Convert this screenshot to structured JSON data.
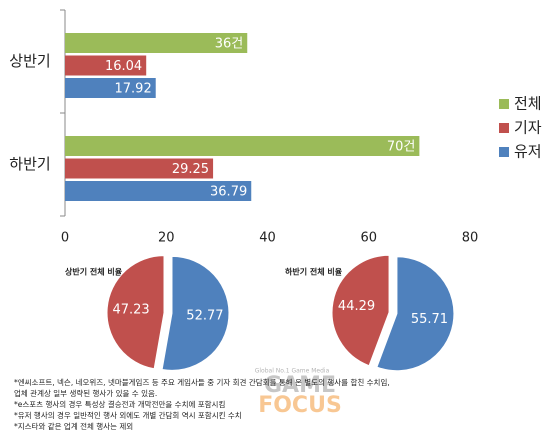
{
  "chart_data": [
    {
      "type": "bar",
      "orientation": "horizontal",
      "categories": [
        "상반기",
        "하반기"
      ],
      "series": [
        {
          "name": "전체",
          "color": "#9bbb59",
          "values": [
            36,
            70
          ],
          "value_labels": [
            "36건",
            "70건"
          ]
        },
        {
          "name": "기자",
          "color": "#c0504d",
          "values": [
            16.04,
            29.25
          ]
        },
        {
          "name": "유저",
          "color": "#4f81bd",
          "values": [
            17.92,
            36.79
          ]
        }
      ],
      "xlim": [
        0,
        80
      ],
      "xticks": [
        0,
        20,
        40,
        60,
        80
      ],
      "grid": false,
      "legend": "right"
    },
    {
      "type": "pie",
      "title": "상반기 전체 비율",
      "values": [
        52.77,
        47.23
      ],
      "colors": [
        "#4f81bd",
        "#c0504d"
      ]
    },
    {
      "type": "pie",
      "title": "하반기 전체 비율",
      "values": [
        55.71,
        44.29
      ],
      "colors": [
        "#4f81bd",
        "#c0504d"
      ]
    }
  ],
  "notes": [
    "*엔씨소프트, 넥슨, 네오위즈, 넷마블게임즈 등 주요 게임사들 중 기자 회견 간담회를 통해 온 별도의 행사를 합친 수치임,",
    "업체 관계상 일부 생략된 행사가 있을 수 있음.",
    "*e스포츠 행사의 경우 특성상 결승전과 개막전만을 수치에 포함시킴",
    "*유저 행사의 경우 일반적인 행사 외에도 개별 간담회 역시 포함시킨 수치",
    "*지스타와 같은 업계 전체 행사는 제외"
  ],
  "watermark": {
    "tagline": "Global No.1 Game Media",
    "brand_1": "GAME",
    "brand_2": "FOCUS"
  }
}
